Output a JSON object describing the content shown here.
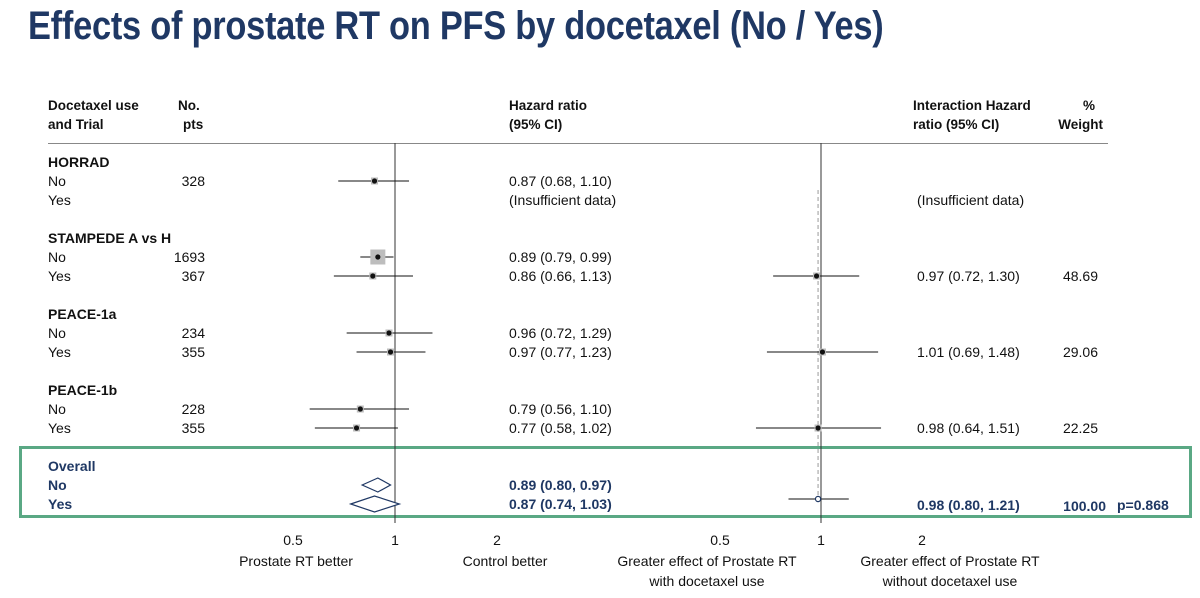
{
  "title": "Effects of prostate RT on PFS by docetaxel (No / Yes)",
  "headers": {
    "trial": [
      "Docetaxel use",
      "and Trial"
    ],
    "pts": [
      "No.",
      "pts"
    ],
    "hr": [
      "Hazard ratio",
      "(95% CI)"
    ],
    "ihr": [
      "Interaction Hazard",
      "ratio (95% CI)"
    ],
    "weight": [
      "%",
      "Weight"
    ]
  },
  "colors": {
    "title": "#1f3864",
    "overall": "#1f3864",
    "box": "#5aa884"
  },
  "chart_data": {
    "type": "forest",
    "scale": "log",
    "panels": [
      {
        "name": "Hazard ratio",
        "xticks": [
          0.5,
          1,
          2
        ],
        "xtick_labels": [
          "0.5",
          "1",
          "2"
        ],
        "left_caption": "Prostate RT better",
        "right_caption": "Control better"
      },
      {
        "name": "Interaction Hazard ratio",
        "xticks": [
          0.5,
          1,
          2
        ],
        "xtick_labels": [
          "0.5",
          "1",
          "2"
        ],
        "left_caption": [
          "Greater effect of Prostate RT",
          "with docetaxel use"
        ],
        "right_caption": [
          "Greater effect of Prostate RT",
          "without docetaxel use"
        ]
      }
    ],
    "trials": [
      {
        "name": "HORRAD",
        "rows": [
          {
            "label": "No",
            "pts": "328",
            "hr": 0.87,
            "lo": 0.68,
            "hi": 1.1,
            "hr_text": "0.87 (0.68, 1.10)"
          },
          {
            "label": "Yes",
            "pts": "",
            "hr": null,
            "hr_text": "(Insufficient data)"
          }
        ],
        "interaction": {
          "hr": null,
          "text": "(Insufficient data)",
          "weight": ""
        }
      },
      {
        "name": "STAMPEDE A vs H",
        "rows": [
          {
            "label": "No",
            "pts": "1693",
            "hr": 0.89,
            "lo": 0.79,
            "hi": 0.99,
            "hr_text": "0.89 (0.79, 0.99)"
          },
          {
            "label": "Yes",
            "pts": "367",
            "hr": 0.86,
            "lo": 0.66,
            "hi": 1.13,
            "hr_text": "0.86 (0.66, 1.13)"
          }
        ],
        "interaction": {
          "hr": 0.97,
          "lo": 0.72,
          "hi": 1.3,
          "text": "0.97 (0.72, 1.30)",
          "weight": "48.69"
        }
      },
      {
        "name": "PEACE-1a",
        "rows": [
          {
            "label": "No",
            "pts": "234",
            "hr": 0.96,
            "lo": 0.72,
            "hi": 1.29,
            "hr_text": "0.96 (0.72, 1.29)"
          },
          {
            "label": "Yes",
            "pts": "355",
            "hr": 0.97,
            "lo": 0.77,
            "hi": 1.23,
            "hr_text": "0.97 (0.77, 1.23)"
          }
        ],
        "interaction": {
          "hr": 1.01,
          "lo": 0.69,
          "hi": 1.48,
          "text": "1.01 (0.69, 1.48)",
          "weight": "29.06"
        }
      },
      {
        "name": "PEACE-1b",
        "rows": [
          {
            "label": "No",
            "pts": "228",
            "hr": 0.79,
            "lo": 0.56,
            "hi": 1.1,
            "hr_text": "0.79 (0.56, 1.10)"
          },
          {
            "label": "Yes",
            "pts": "355",
            "hr": 0.77,
            "lo": 0.58,
            "hi": 1.02,
            "hr_text": "0.77 (0.58, 1.02)"
          }
        ],
        "interaction": {
          "hr": 0.98,
          "lo": 0.64,
          "hi": 1.51,
          "text": "0.98 (0.64, 1.51)",
          "weight": "22.25"
        }
      }
    ],
    "overall": {
      "name": "Overall",
      "rows": [
        {
          "label": "No",
          "hr": 0.89,
          "lo": 0.8,
          "hi": 0.97,
          "hr_text": "0.89 (0.80, 0.97)"
        },
        {
          "label": "Yes",
          "hr": 0.87,
          "lo": 0.74,
          "hi": 1.03,
          "hr_text": "0.87 (0.74, 1.03)"
        }
      ],
      "interaction": {
        "hr": 0.98,
        "lo": 0.8,
        "hi": 1.21,
        "text": "0.98 (0.80, 1.21)",
        "weight": "100.00",
        "p": "p=0.868"
      }
    }
  }
}
